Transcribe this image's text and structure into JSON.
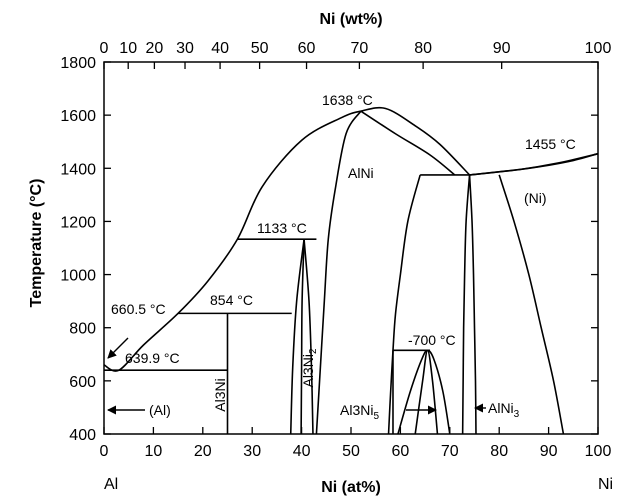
{
  "chart_data": {
    "type": "phase-diagram",
    "title": "",
    "xlabel_bottom": "Ni (at%)",
    "xlabel_top": "Ni (wt%)",
    "ylabel": "Temperature (°C)",
    "xlim": [
      0,
      100
    ],
    "ylim": [
      400,
      1800
    ],
    "bottom_ticks": [
      "0",
      "10",
      "20",
      "30",
      "40",
      "50",
      "60",
      "70",
      "80",
      "90",
      "100"
    ],
    "top_ticks": [
      {
        "label": "0",
        "at": 0
      },
      {
        "label": "10",
        "at": 4.9
      },
      {
        "label": "20",
        "at": 10.2
      },
      {
        "label": "30",
        "at": 16.4
      },
      {
        "label": "40",
        "at": 23.5
      },
      {
        "label": "50",
        "at": 31.5
      },
      {
        "label": "60",
        "at": 41.0
      },
      {
        "label": "70",
        "at": 51.7
      },
      {
        "label": "80",
        "at": 64.6
      },
      {
        "label": "90",
        "at": 80.5
      },
      {
        "label": "100",
        "at": 100
      }
    ],
    "y_ticks": [
      "400",
      "600",
      "800",
      "1000",
      "1200",
      "1400",
      "1600",
      "1800"
    ],
    "element_left": "Al",
    "element_right": "Ni",
    "temperatures": {
      "al_melting": "660.5 °C",
      "eutectic": "639.9 °C",
      "al3ni2_peritectic": "854 °C",
      "al3ni2_top": "1133 °C",
      "alni_max": "1638 °C",
      "ni_melting": "1455 °C",
      "al3ni5": "-700 °C"
    },
    "phases": {
      "al": "(Al)",
      "al3ni": "Al3Ni",
      "al3ni2_main": "Al3Ni",
      "al3ni2_sub": "2",
      "alni": "AlNi",
      "al3ni5_main": "Al3Ni",
      "al3ni5_sub": "5",
      "alni3_main": "AlNi",
      "alni3_sub": "3",
      "ni": "(Ni)"
    },
    "invariants": [
      {
        "x": [
          0,
          25
        ],
        "y": 640
      },
      {
        "x": [
          15,
          38
        ],
        "y": 854
      },
      {
        "x": [
          27,
          43
        ],
        "y": 1133
      },
      {
        "x": [
          64,
          74
        ],
        "y": 1375
      },
      {
        "x": [
          58.5,
          66
        ],
        "y": 715
      }
    ],
    "curves": [
      {
        "name": "liquidus-left",
        "points": [
          [
            0,
            660
          ],
          [
            3,
            640
          ],
          [
            8,
            735
          ],
          [
            15,
            854
          ],
          [
            21,
            975
          ],
          [
            27,
            1133
          ],
          [
            32,
            1330
          ],
          [
            40,
            1505
          ],
          [
            48,
            1590
          ],
          [
            52,
            1615
          ],
          [
            57,
            1625
          ],
          [
            63,
            1560
          ],
          [
            68,
            1490
          ],
          [
            74,
            1375
          ]
        ]
      },
      {
        "name": "liquidus-right",
        "points": [
          [
            74,
            1375
          ],
          [
            84,
            1395
          ],
          [
            92,
            1420
          ],
          [
            100,
            1455
          ]
        ]
      },
      {
        "name": "solidus-right",
        "points": [
          [
            74,
            1375
          ],
          [
            86,
            1400
          ],
          [
            94,
            1425
          ],
          [
            100,
            1455
          ]
        ]
      },
      {
        "name": "alni-left-boundary",
        "points": [
          [
            43,
            400
          ],
          [
            43.8,
            650
          ],
          [
            44.6,
            900
          ],
          [
            45.4,
            1133
          ],
          [
            46.8,
            1320
          ],
          [
            49,
            1530
          ],
          [
            52,
            1615
          ]
        ]
      },
      {
        "name": "alni-right-upper",
        "points": [
          [
            52,
            1615
          ],
          [
            59,
            1530
          ],
          [
            66,
            1450
          ],
          [
            71,
            1375
          ]
        ]
      },
      {
        "name": "alni-right-lower",
        "points": [
          [
            64,
            1375
          ],
          [
            61.5,
            1200
          ],
          [
            60,
            1000
          ],
          [
            59,
            850
          ],
          [
            58.5,
            715
          ],
          [
            58,
            550
          ],
          [
            57.6,
            400
          ]
        ]
      },
      {
        "name": "alni3-left",
        "points": [
          [
            74,
            1375
          ],
          [
            73.3,
            1200
          ],
          [
            73,
            1000
          ],
          [
            72.8,
            800
          ],
          [
            72.7,
            600
          ],
          [
            72.6,
            400
          ]
        ]
      },
      {
        "name": "alni3-right",
        "points": [
          [
            74,
            1375
          ],
          [
            74.5,
            1200
          ],
          [
            74.8,
            1000
          ],
          [
            75,
            800
          ],
          [
            75.2,
            600
          ],
          [
            75.3,
            400
          ]
        ]
      },
      {
        "name": "ni-solvus",
        "points": [
          [
            80,
            1375
          ],
          [
            83,
            1200
          ],
          [
            86,
            1000
          ],
          [
            88.5,
            800
          ],
          [
            91,
            600
          ],
          [
            93,
            400
          ]
        ]
      },
      {
        "name": "al3ni2-left",
        "points": [
          [
            40.5,
            1133
          ],
          [
            39,
            900
          ],
          [
            38.2,
            650
          ],
          [
            37.8,
            400
          ]
        ]
      },
      {
        "name": "al3ni2-inner-left",
        "points": [
          [
            40.5,
            1133
          ],
          [
            40.1,
            900
          ],
          [
            40,
            650
          ],
          [
            39.9,
            400
          ]
        ]
      },
      {
        "name": "al3ni2-right",
        "points": [
          [
            40.5,
            1133
          ],
          [
            41.5,
            900
          ],
          [
            42,
            650
          ],
          [
            42.3,
            400
          ]
        ]
      },
      {
        "name": "al3ni5-outer",
        "points": [
          [
            59.5,
            400
          ],
          [
            62,
            560
          ],
          [
            64.3,
            680
          ],
          [
            65.5,
            715
          ],
          [
            66.8,
            680
          ],
          [
            68.6,
            560
          ],
          [
            70,
            400
          ]
        ]
      },
      {
        "name": "al3ni5-inner",
        "points": [
          [
            63,
            400
          ],
          [
            64.5,
            600
          ],
          [
            65.5,
            715
          ],
          [
            66.5,
            600
          ],
          [
            67.5,
            400
          ]
        ]
      }
    ],
    "lines": [
      {
        "name": "al3ni-line",
        "points": [
          [
            25,
            400
          ],
          [
            25,
            854
          ]
        ]
      },
      {
        "name": "al3ni5-dome-left",
        "points": [
          [
            58.5,
            715
          ],
          [
            58.5,
            400
          ]
        ]
      }
    ]
  }
}
